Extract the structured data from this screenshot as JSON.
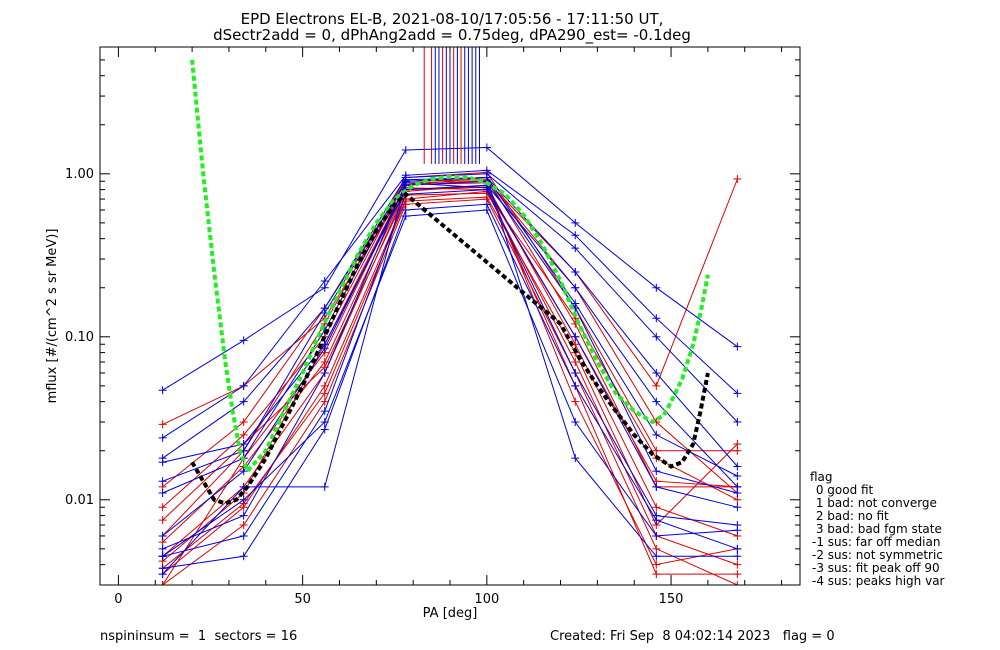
{
  "title_line1": "EPD Electrons EL-B, 2021-08-10/17:05:56 - 17:11:50 UT,",
  "title_line2": "dSectr2add = 0, dPhAng2add = 0.75deg, dPA290_est=  -0.1deg",
  "footer": {
    "left": "nspininsum =  1  sectors = 16",
    "right": "Created: Fri Sep  8 04:02:14 2023   flag = 0"
  },
  "legend": {
    "title": "flag",
    "items": [
      " 0 good fit",
      " 1 bad: not converge",
      " 2 bad: no fit",
      " 3 bad: bad fgm state",
      "-1 sus: far off median",
      "-2 sus: not symmetric",
      "-3 sus: fit peak off 90",
      "-4 sus: peaks high var"
    ]
  },
  "colors": {
    "red_series": "#e00000",
    "blue_series": "#0000e0",
    "green_fit": "#22ee22",
    "black_fit": "#000000",
    "axes": "#000000"
  },
  "chart_data": {
    "type": "line",
    "xlabel": "PA [deg]",
    "ylabel": "mflux [#/(cm^2 s sr MeV)]",
    "xlim": [
      -5,
      185
    ],
    "ylim": [
      0.003,
      6.0
    ],
    "yscale": "log",
    "x_ticks": [
      0,
      50,
      100,
      150
    ],
    "x_tick_labels": [
      "0",
      "50",
      "100",
      "150"
    ],
    "y_ticks": [
      0.01,
      0.1,
      1.0
    ],
    "y_tick_labels": [
      "0.01",
      "0.10",
      "1.00"
    ],
    "grid": false,
    "legend_position": "outside-right-bottom",
    "x_samples": [
      12,
      34,
      56,
      78,
      100,
      124,
      146,
      168
    ],
    "red_series": [
      {
        "values": [
          0.003,
          0.018,
          0.08,
          0.85,
          0.95,
          0.12,
          0.012,
          0.012
        ]
      },
      {
        "values": [
          0.0045,
          0.012,
          0.06,
          0.78,
          0.85,
          0.09,
          0.009,
          0.006
        ]
      },
      {
        "values": [
          0.006,
          0.02,
          0.12,
          0.95,
          1.02,
          0.15,
          0.02,
          0.02
        ]
      },
      {
        "values": [
          0.0035,
          0.009,
          0.05,
          0.7,
          0.78,
          0.07,
          0.006,
          0.004
        ]
      },
      {
        "values": [
          0.003,
          0.007,
          0.04,
          0.65,
          0.7,
          0.06,
          0.005,
          0.003
        ]
      },
      {
        "values": [
          0.009,
          0.025,
          0.1,
          0.9,
          0.92,
          0.2,
          0.03,
          0.011
        ]
      },
      {
        "values": [
          0.012,
          0.03,
          0.15,
          0.88,
          0.9,
          0.25,
          0.05,
          0.93
        ]
      },
      {
        "values": [
          0.0055,
          0.016,
          0.07,
          0.8,
          0.83,
          0.05,
          0.0035,
          0.0035
        ]
      },
      {
        "values": [
          0.029,
          0.05,
          0.13,
          0.82,
          0.8,
          0.1,
          0.013,
          0.012
        ]
      },
      {
        "values": [
          0.0042,
          0.011,
          0.09,
          0.86,
          0.88,
          0.04,
          0.004,
          0.005
        ]
      },
      {
        "values": [
          0.0075,
          0.022,
          0.065,
          0.74,
          0.76,
          0.13,
          0.018,
          0.01
        ]
      },
      {
        "values": [
          0.0038,
          0.0095,
          0.045,
          0.68,
          0.72,
          0.08,
          0.007,
          0.022
        ]
      }
    ],
    "blue_series": [
      {
        "values": [
          0.047,
          0.095,
          0.2,
          1.4,
          1.45,
          0.5,
          0.2,
          0.087
        ]
      },
      {
        "values": [
          0.024,
          0.05,
          0.22,
          0.98,
          1.05,
          0.42,
          0.13,
          0.045
        ]
      },
      {
        "values": [
          0.018,
          0.04,
          0.15,
          0.95,
          1.0,
          0.35,
          0.1,
          0.03
        ]
      },
      {
        "values": [
          0.0035,
          0.012,
          0.012,
          0.9,
          0.95,
          0.018,
          0.0045,
          0.0045
        ]
      },
      {
        "values": [
          0.0045,
          0.006,
          0.035,
          0.75,
          0.8,
          0.06,
          0.008,
          0.007
        ]
      },
      {
        "values": [
          0.006,
          0.015,
          0.085,
          0.85,
          0.9,
          0.15,
          0.015,
          0.011
        ]
      },
      {
        "values": [
          0.011,
          0.018,
          0.11,
          0.92,
          0.95,
          0.25,
          0.06,
          0.016
        ]
      },
      {
        "values": [
          0.017,
          0.022,
          0.09,
          0.8,
          0.85,
          0.2,
          0.04,
          0.012
        ]
      },
      {
        "values": [
          0.0045,
          0.01,
          0.03,
          0.55,
          0.6,
          0.03,
          0.006,
          0.0065
        ]
      },
      {
        "values": [
          0.005,
          0.008,
          0.06,
          0.88,
          0.82,
          0.1,
          0.012,
          0.009
        ]
      },
      {
        "values": [
          0.013,
          0.02,
          0.14,
          0.9,
          0.95,
          0.16,
          0.025,
          0.014
        ]
      },
      {
        "values": [
          0.0038,
          0.0045,
          0.027,
          0.6,
          0.65,
          0.05,
          0.0075,
          0.005
        ]
      }
    ],
    "vertical_lines_red_x": [
      83,
      85,
      88,
      91,
      93
    ],
    "vertical_lines_blue_x": [
      86,
      87,
      89,
      90,
      92,
      94,
      95,
      96,
      97,
      98
    ],
    "vertical_lines_from_y": 1.15,
    "green_fit": {
      "x": [
        20,
        23,
        26,
        29,
        31,
        33,
        35,
        40,
        45,
        50,
        55,
        60,
        65,
        70,
        75,
        80,
        85,
        90,
        95,
        100,
        105,
        110,
        115,
        120,
        125,
        130,
        135,
        140,
        145,
        148,
        150,
        153,
        156,
        158,
        160
      ],
      "y": [
        5.0,
        1.0,
        0.25,
        0.07,
        0.035,
        0.02,
        0.015,
        0.02,
        0.035,
        0.06,
        0.11,
        0.19,
        0.32,
        0.5,
        0.7,
        0.85,
        0.93,
        0.96,
        0.95,
        0.88,
        0.75,
        0.56,
        0.37,
        0.22,
        0.12,
        0.07,
        0.045,
        0.035,
        0.03,
        0.033,
        0.04,
        0.055,
        0.09,
        0.14,
        0.24
      ]
    },
    "black_fit": {
      "x": [
        20,
        23,
        26,
        29,
        32,
        35,
        40,
        45,
        50,
        55,
        60,
        65,
        70,
        75,
        78,
        120,
        125,
        130,
        135,
        140,
        145,
        150,
        153,
        156,
        158,
        160
      ],
      "y": [
        0.017,
        0.013,
        0.01,
        0.0095,
        0.01,
        0.012,
        0.018,
        0.03,
        0.05,
        0.09,
        0.16,
        0.28,
        0.45,
        0.65,
        0.75,
        0.12,
        0.075,
        0.05,
        0.035,
        0.025,
        0.019,
        0.016,
        0.017,
        0.022,
        0.035,
        0.06
      ]
    }
  }
}
